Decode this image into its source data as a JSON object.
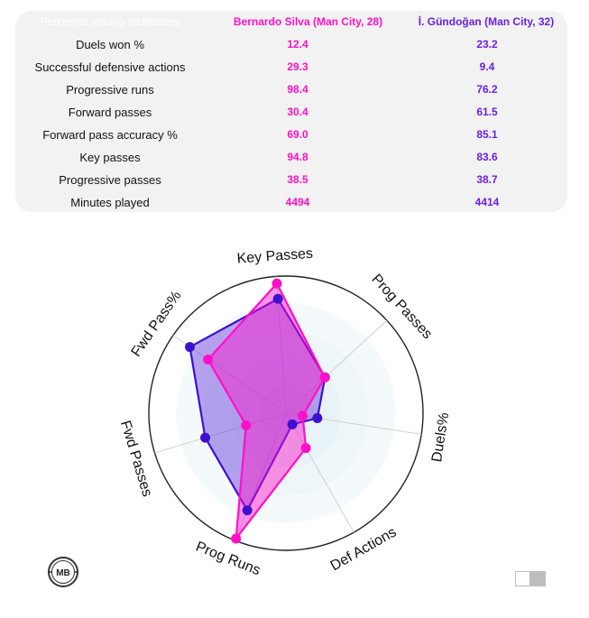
{
  "table": {
    "header": {
      "label": "Percentile among midfielders",
      "player1": "Bernardo Silva (Man City, 28)",
      "player2": "İ. Gündoğan (Man City, 32)"
    },
    "rows": [
      {
        "label": "Duels won %",
        "p1": "12.4",
        "p2": "23.2"
      },
      {
        "label": "Successful defensive actions",
        "p1": "29.3",
        "p2": "9.4"
      },
      {
        "label": "Progressive runs",
        "p1": "98.4",
        "p2": "76.2"
      },
      {
        "label": "Forward passes",
        "p1": "30.4",
        "p2": "61.5"
      },
      {
        "label": "Forward pass accuracy %",
        "p1": "69.0",
        "p2": "85.1"
      },
      {
        "label": "Key passes",
        "p1": "94.8",
        "p2": "83.6"
      },
      {
        "label": "Progressive passes",
        "p1": "38.5",
        "p2": "38.7"
      },
      {
        "label": "Minutes played",
        "p1": "4494",
        "p2": "4414"
      }
    ]
  },
  "chart_data": {
    "type": "radar",
    "axes": [
      "Key Passes",
      "Prog Passes",
      "Duels%",
      "Def Actions",
      "Prog Runs",
      "Fwd Passes",
      "Fwd Pass%"
    ],
    "range": [
      0,
      100
    ],
    "series": [
      {
        "name": "Bernardo Silva (Man City, 28)",
        "color": "#ff10c8",
        "values": [
          94.8,
          38.5,
          12.4,
          29.3,
          98.4,
          30.4,
          69.0
        ]
      },
      {
        "name": "İ. Gündoğan (Man City, 32)",
        "color": "#3d10d0",
        "values": [
          83.6,
          38.7,
          23.2,
          9.4,
          76.2,
          61.5,
          85.1
        ]
      }
    ]
  },
  "logo": {
    "text": "MB",
    "icon": "mb-logo-icon"
  },
  "toggle": {
    "icon": "toggle-switch-icon"
  }
}
